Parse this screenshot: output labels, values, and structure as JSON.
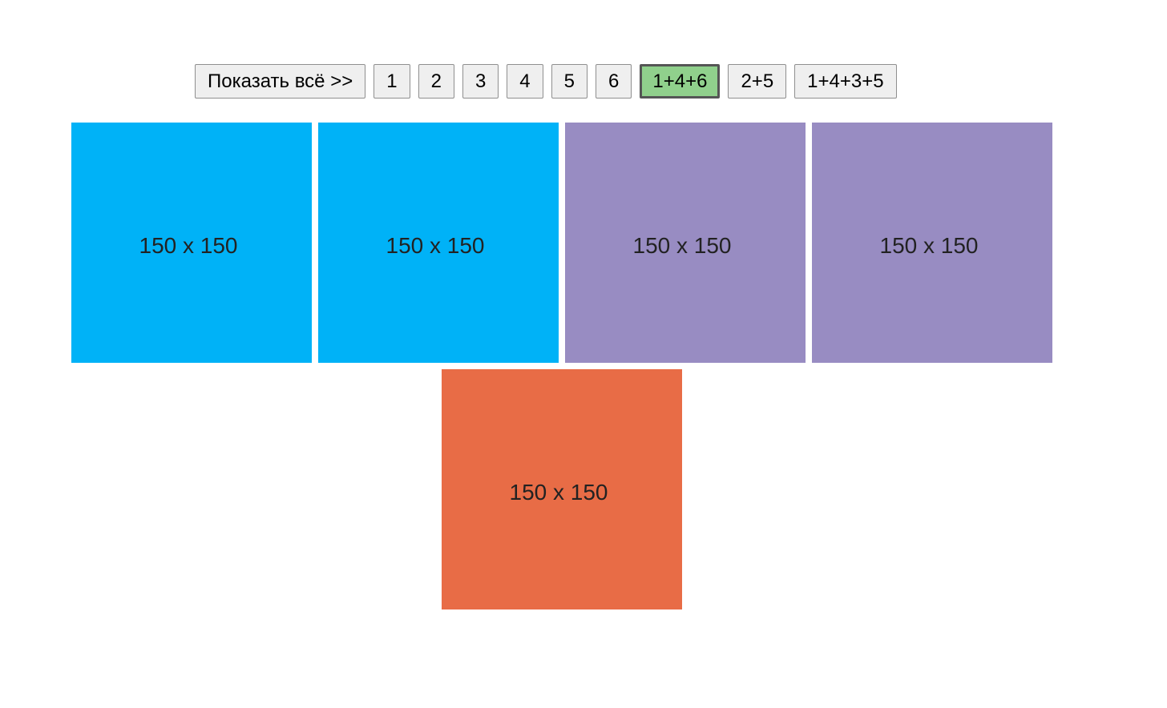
{
  "buttons": [
    {
      "label": "Показать всё >>",
      "active": false
    },
    {
      "label": "1",
      "active": false
    },
    {
      "label": "2",
      "active": false
    },
    {
      "label": "3",
      "active": false
    },
    {
      "label": "4",
      "active": false
    },
    {
      "label": "5",
      "active": false
    },
    {
      "label": "6",
      "active": false
    },
    {
      "label": "1+4+6",
      "active": true
    },
    {
      "label": "2+5",
      "active": false
    },
    {
      "label": "1+4+3+5",
      "active": false
    }
  ],
  "tiles": [
    {
      "text": "150 x 150",
      "color": "#00b2f7"
    },
    {
      "text": "150 x 150",
      "color": "#00b2f7"
    },
    {
      "text": "150 x 150",
      "color": "#988cc2"
    },
    {
      "text": "150 x 150",
      "color": "#988cc2"
    },
    {
      "text": "150 x 150",
      "color": "#e86c46"
    }
  ]
}
